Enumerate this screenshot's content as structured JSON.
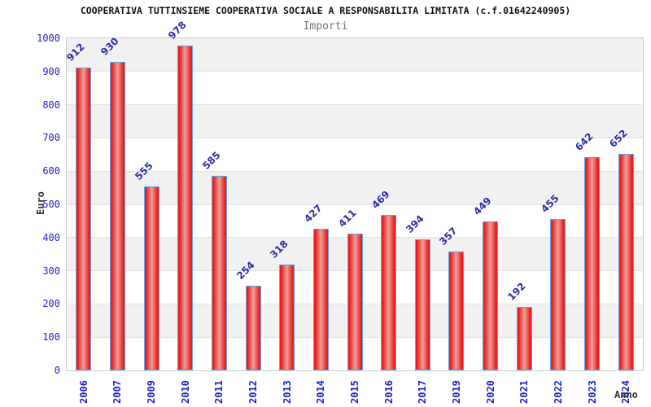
{
  "chart_data": {
    "type": "bar",
    "title": "COOPERATIVA TUTTINSIEME COOPERATIVA SOCIALE A RESPONSABILITA LIMITATA (c.f.01642240905)",
    "subtitle": "Importi",
    "xlabel": "Anno",
    "ylabel": "Euro",
    "categories": [
      "2006",
      "2007",
      "2009",
      "2010",
      "2011",
      "2012",
      "2013",
      "2014",
      "2015",
      "2016",
      "2017",
      "2019",
      "2020",
      "2021",
      "2022",
      "2023",
      "2024"
    ],
    "values": [
      912,
      930,
      555,
      978,
      585,
      254,
      318,
      427,
      411,
      469,
      394,
      357,
      449,
      192,
      455,
      642,
      652
    ],
    "ylim": [
      0,
      1000
    ],
    "ytick_interval": 100,
    "yticks": [
      0,
      100,
      200,
      300,
      400,
      500,
      600,
      700,
      800,
      900,
      1000
    ],
    "grid": true,
    "legend_position": "none",
    "colors": {
      "bar_edge_red": "#ee1b1b",
      "bar_mid_red": "#e8a19a",
      "bar_border_blue": "#58aaec",
      "tick_label_blue": "#2121cc",
      "value_label_navy": "#2d2daa",
      "title_text": "#111111",
      "subtitle_text": "#757575",
      "axis_title_text": "#333333",
      "band_gray": "#f1f1f1",
      "band_white": "#ffffff",
      "gridline_gray": "#e2e2e2",
      "plot_border_gray": "#cccccc"
    }
  }
}
